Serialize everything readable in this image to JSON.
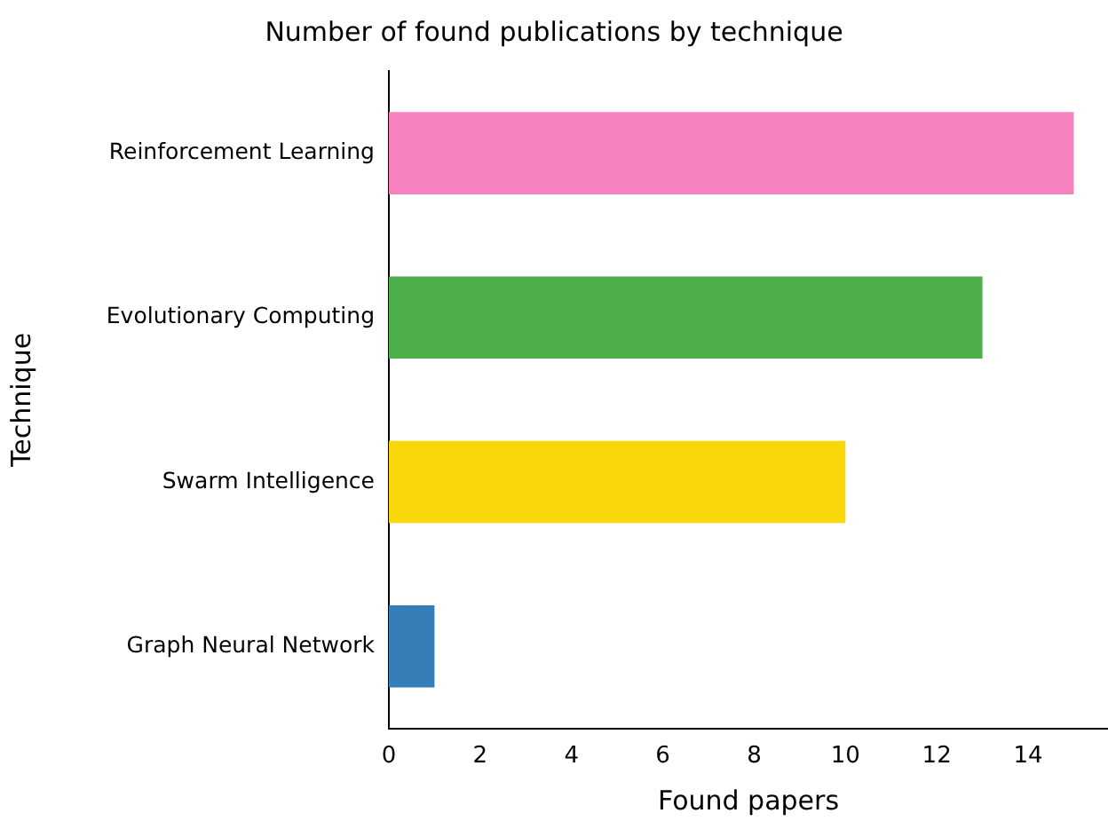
{
  "chart_data": {
    "type": "bar",
    "orientation": "horizontal",
    "title": "Number of found publications by technique",
    "xlabel": "Found papers",
    "ylabel": "Technique",
    "categories": [
      "Reinforcement Learning",
      "Evolutionary Computing",
      "Swarm Intelligence",
      "Graph Neural Network"
    ],
    "values": [
      15,
      13,
      10,
      1
    ],
    "colors": [
      "#f781bf",
      "#4daf4a",
      "#f8d80a",
      "#377eb8"
    ],
    "xlim": [
      0,
      15.75
    ],
    "xticks": [
      0,
      2,
      4,
      6,
      8,
      10,
      12,
      14
    ],
    "grid": false,
    "legend": false
  }
}
